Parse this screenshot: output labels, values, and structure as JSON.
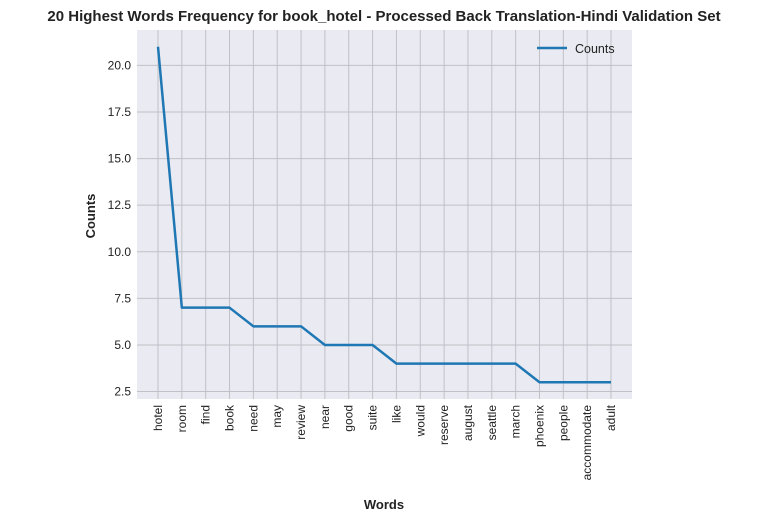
{
  "chart_data": {
    "type": "line",
    "title": "20 Highest Words Frequency for book_hotel - Processed Back Translation-Hindi Validation Set",
    "xlabel": "Words",
    "ylabel": "Counts",
    "categories": [
      "hotel",
      "room",
      "find",
      "book",
      "need",
      "may",
      "review",
      "near",
      "good",
      "suite",
      "like",
      "would",
      "reserve",
      "august",
      "seattle",
      "march",
      "phoenix",
      "people",
      "accommodate",
      "adult"
    ],
    "series": [
      {
        "name": "Counts",
        "values": [
          21,
          7,
          7,
          7,
          6,
          6,
          6,
          5,
          5,
          5,
          4,
          4,
          4,
          4,
          4,
          4,
          3,
          3,
          3,
          3
        ]
      }
    ],
    "ylim": [
      2.1,
      21.9
    ],
    "yticks": [
      2.5,
      5.0,
      7.5,
      10.0,
      12.5,
      15.0,
      17.5,
      20.0
    ],
    "ytick_labels": [
      "2.5",
      "5.0",
      "7.5",
      "10.0",
      "12.5",
      "15.0",
      "17.5",
      "20.0"
    ],
    "grid": true,
    "legend_position": "top-right",
    "colors": {
      "line": "#1f77b4",
      "plot_bg": "#eaeaf2",
      "grid": "#c0c0c6"
    }
  }
}
